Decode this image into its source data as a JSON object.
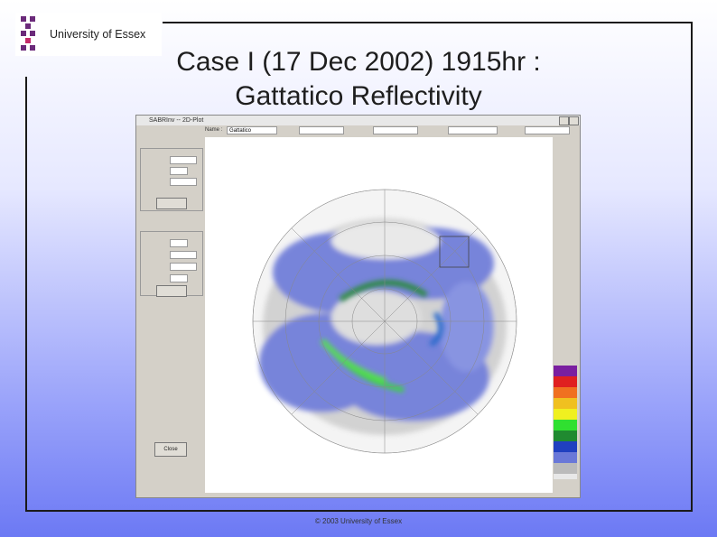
{
  "logo": {
    "text": "University of Essex"
  },
  "slide": {
    "title_line1": "Case I (17 Dec 2002) 1915hr :",
    "title_line2": "Gattatico Reflectivity",
    "footer": "© 2003 University of Essex"
  },
  "window": {
    "title": "SABRInv -- 2D-Plot",
    "name_label": "Name :",
    "name_value": "Gattatico",
    "button_close": "Close"
  }
}
